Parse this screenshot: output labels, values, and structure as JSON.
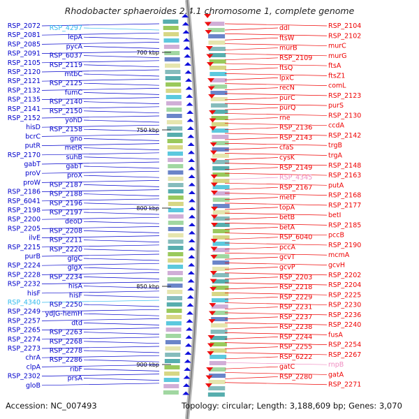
{
  "title": "Rhodobacter sphaeroides 2.4.1 chromosome 1, complete genome",
  "footer": {
    "accession": "Accession: NC_007493",
    "summary": "Topology: circular; Length: 3,188,609 bp; Genes: 3,070"
  },
  "colors": {
    "left": "#0000cc",
    "right": "#ee0000",
    "cyan": "#33bbee",
    "pink": "#f08cc0"
  },
  "kbp_ticks": [
    "700 kbp",
    "750 kbp",
    "800 kbp",
    "850 kbp",
    "900 kbp"
  ],
  "left_labels": [
    {
      "t": "RSP_2072"
    },
    {
      "t": "RSP_4297",
      "c": "cyan"
    },
    {
      "t": "RSP_2081"
    },
    {
      "t": "lepA"
    },
    {
      "t": "RSP_2085"
    },
    {
      "t": "pycA"
    },
    {
      "t": "RSP_2091"
    },
    {
      "t": "RSP_6037"
    },
    {
      "t": "RSP_2105"
    },
    {
      "t": "RSP_2119"
    },
    {
      "t": "RSP_2120"
    },
    {
      "t": "mtbC"
    },
    {
      "t": "RSP_2121"
    },
    {
      "t": "RSP_2125"
    },
    {
      "t": "RSP_2132"
    },
    {
      "t": "fumC"
    },
    {
      "t": "RSP_2135"
    },
    {
      "t": "RSP_2140"
    },
    {
      "t": "RSP_2141"
    },
    {
      "t": "RSP_2150"
    },
    {
      "t": "RSP_2152"
    },
    {
      "t": "yohD"
    },
    {
      "t": "hisD"
    },
    {
      "t": "RSP_2158"
    },
    {
      "t": "bcrC"
    },
    {
      "t": "gno"
    },
    {
      "t": "putR"
    },
    {
      "t": "metR"
    },
    {
      "t": "RSP_2170"
    },
    {
      "t": "suhB"
    },
    {
      "t": "gabT"
    },
    {
      "t": "gabT"
    },
    {
      "t": "proV"
    },
    {
      "t": "proX"
    },
    {
      "t": "proW"
    },
    {
      "t": "RSP_2187"
    },
    {
      "t": "RSP_2186"
    },
    {
      "t": "RSP_2188"
    },
    {
      "t": "RSP_6041"
    },
    {
      "t": "RSP_2196"
    },
    {
      "t": "RSP_2198"
    },
    {
      "t": "RSP_2197"
    },
    {
      "t": "RSP_2200"
    },
    {
      "t": "deoD"
    },
    {
      "t": "RSP_2205"
    },
    {
      "t": "RSP_2208"
    },
    {
      "t": "ilvE"
    },
    {
      "t": "RSP_2211"
    },
    {
      "t": "RSP_2215"
    },
    {
      "t": "RSP_2220"
    },
    {
      "t": "purB"
    },
    {
      "t": "glgC"
    },
    {
      "t": "RSP_2224"
    },
    {
      "t": "glgX"
    },
    {
      "t": "RSP_2228"
    },
    {
      "t": "RSP_2234"
    },
    {
      "t": "RSP_2232"
    },
    {
      "t": "hisA"
    },
    {
      "t": "hisF"
    },
    {
      "t": "hisF"
    },
    {
      "t": "RSP_4340",
      "c": "cyan"
    },
    {
      "t": "RSP_2250"
    },
    {
      "t": "RSP_2249"
    },
    {
      "t": "ydjG-hemH"
    },
    {
      "t": "RSP_2257"
    },
    {
      "t": "dtd"
    },
    {
      "t": "RSP_2265"
    },
    {
      "t": "RSP_2263"
    },
    {
      "t": "RSP_2274"
    },
    {
      "t": "RSP_2268"
    },
    {
      "t": "RSP_2273"
    },
    {
      "t": "RSP_2278"
    },
    {
      "t": "chrA"
    },
    {
      "t": "RSP_2286"
    },
    {
      "t": "clpA"
    },
    {
      "t": "ribF"
    },
    {
      "t": "RSP_2302"
    },
    {
      "t": "prsA"
    },
    {
      "t": "gloB"
    }
  ],
  "right_labels": [
    {
      "t": "RSP_2104"
    },
    {
      "t": "ddl"
    },
    {
      "t": "RSP_2102"
    },
    {
      "t": "ftsW"
    },
    {
      "t": "murC"
    },
    {
      "t": "murB"
    },
    {
      "t": "murG"
    },
    {
      "t": "RSP_2109"
    },
    {
      "t": "ftsA"
    },
    {
      "t": "ftsQ"
    },
    {
      "t": "ftsZ1"
    },
    {
      "t": "lpxC"
    },
    {
      "t": "comL"
    },
    {
      "t": "recN"
    },
    {
      "t": "RSP_2123"
    },
    {
      "t": "purC"
    },
    {
      "t": "purS"
    },
    {
      "t": "purQ"
    },
    {
      "t": "RSP_2130"
    },
    {
      "t": "rne"
    },
    {
      "t": "ccdA"
    },
    {
      "t": "RSP_2136"
    },
    {
      "t": "RSP_2142"
    },
    {
      "t": "RSP_2143"
    },
    {
      "t": "trgB"
    },
    {
      "t": "cfaS"
    },
    {
      "t": "trgA"
    },
    {
      "t": "cysK"
    },
    {
      "t": "RSP_2148"
    },
    {
      "t": "RSP_2149"
    },
    {
      "t": "RSP_2163"
    },
    {
      "t": "RSP_4345",
      "c": "pink"
    },
    {
      "t": "putA"
    },
    {
      "t": "RSP_2167"
    },
    {
      "t": "RSP_2168"
    },
    {
      "t": "metF"
    },
    {
      "t": "RSP_2177"
    },
    {
      "t": "topA"
    },
    {
      "t": "betI"
    },
    {
      "t": "betB"
    },
    {
      "t": "RSP_2185"
    },
    {
      "t": "betA"
    },
    {
      "t": "pccB"
    },
    {
      "t": "RSP_6040"
    },
    {
      "t": "RSP_2190"
    },
    {
      "t": "pccA"
    },
    {
      "t": "mcmA"
    },
    {
      "t": "gcvT"
    },
    {
      "t": "gcvH"
    },
    {
      "t": "gcvP"
    },
    {
      "t": "RSP_2202"
    },
    {
      "t": "RSP_2203"
    },
    {
      "t": "RSP_2204"
    },
    {
      "t": "RSP_2218"
    },
    {
      "t": "RSP_2225"
    },
    {
      "t": "RSP_2229"
    },
    {
      "t": "RSP_2230"
    },
    {
      "t": "RSP_2231"
    },
    {
      "t": "RSP_2236"
    },
    {
      "t": "RSP_2237"
    },
    {
      "t": "RSP_2240"
    },
    {
      "t": "RSP_2238"
    },
    {
      "t": "fusA"
    },
    {
      "t": "RSP_2244"
    },
    {
      "t": "RSP_2254"
    },
    {
      "t": "RSP_2255"
    },
    {
      "t": "RSP_2267"
    },
    {
      "t": "RSP_6222"
    },
    {
      "t": "rnpB",
      "c": "pink"
    },
    {
      "t": "gatC"
    },
    {
      "t": "gatA"
    },
    {
      "t": "RSP_2280"
    },
    {
      "t": "RSP_2271"
    }
  ]
}
